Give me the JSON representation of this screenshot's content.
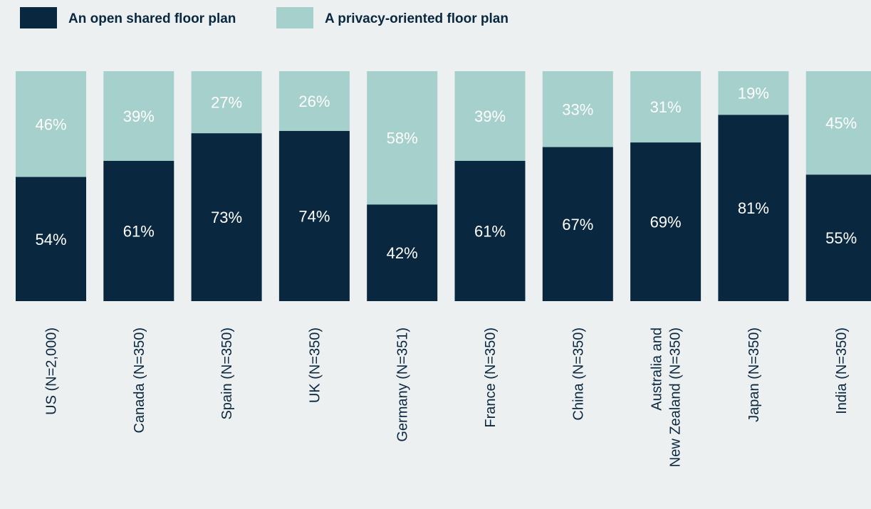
{
  "chart_data": {
    "type": "bar",
    "stacked": true,
    "percent_stacked": true,
    "legend_position": "top-left",
    "grid": false,
    "ylim": [
      0,
      100
    ],
    "categories": [
      [
        "US (N=2,000)"
      ],
      [
        "Canada (N=350)"
      ],
      [
        "Spain (N=350)"
      ],
      [
        "UK (N=350)"
      ],
      [
        "Germany (N=351)"
      ],
      [
        "France (N=350)"
      ],
      [
        "China (N=350)"
      ],
      [
        "Australia and",
        "New Zealand (N=350)"
      ],
      [
        "Japan (N=350)"
      ],
      [
        "India (N=350)"
      ]
    ],
    "series": [
      {
        "name": "An open shared floor plan",
        "color": "#0a2740",
        "label_color": "#ffffff",
        "values": [
          54,
          61,
          73,
          74,
          42,
          61,
          67,
          69,
          81,
          55
        ]
      },
      {
        "name": "A privacy-oriented floor plan",
        "color": "#a6d0cc",
        "label_color": "#ffffff",
        "values": [
          46,
          39,
          27,
          26,
          58,
          39,
          33,
          31,
          19,
          45
        ]
      }
    ],
    "value_suffix": "%"
  }
}
